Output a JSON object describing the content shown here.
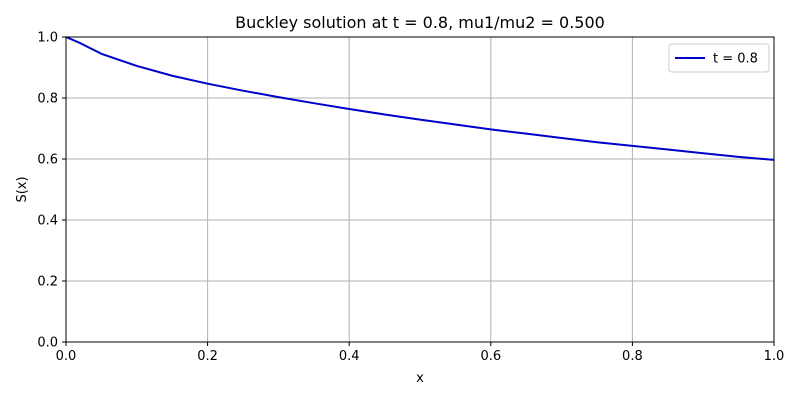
{
  "chart_data": {
    "type": "line",
    "title": "Buckley solution at t = 0.8, mu1/mu2 = 0.500",
    "xlabel": "x",
    "ylabel": "S(x)",
    "xlim": [
      0,
      1
    ],
    "ylim": [
      0,
      1
    ],
    "xticks": [
      "0.0",
      "0.2",
      "0.4",
      "0.6",
      "0.8",
      "1.0"
    ],
    "yticks": [
      "0.0",
      "0.2",
      "0.4",
      "0.6",
      "0.8",
      "1.0"
    ],
    "grid": true,
    "legend_position": "top-right",
    "series": [
      {
        "name": "t = 0.8",
        "color": "#0000cc",
        "x": [
          0.0,
          0.02,
          0.05,
          0.1,
          0.15,
          0.2,
          0.25,
          0.3,
          0.35,
          0.4,
          0.45,
          0.5,
          0.55,
          0.6,
          0.65,
          0.7,
          0.75,
          0.8,
          0.85,
          0.9,
          0.95,
          1.0
        ],
        "y": [
          1.0,
          0.98,
          0.945,
          0.905,
          0.873,
          0.847,
          0.824,
          0.803,
          0.783,
          0.764,
          0.746,
          0.729,
          0.713,
          0.697,
          0.683,
          0.669,
          0.655,
          0.643,
          0.631,
          0.619,
          0.607,
          0.597
        ]
      }
    ]
  }
}
